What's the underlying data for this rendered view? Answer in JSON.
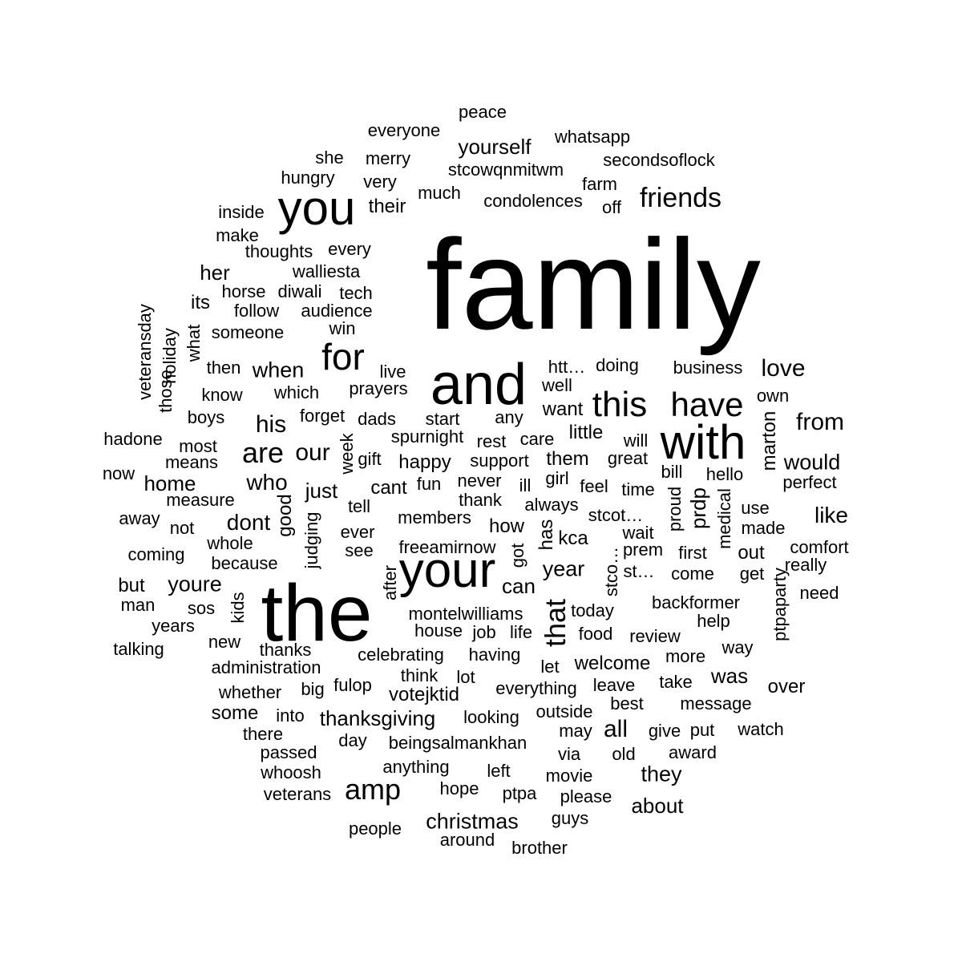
{
  "words": [
    {
      "text": "family",
      "weight": 100
    },
    {
      "text": "the",
      "weight": 55
    },
    {
      "text": "and",
      "weight": 48
    },
    {
      "text": "your",
      "weight": 42
    },
    {
      "text": "with",
      "weight": 40
    },
    {
      "text": "you",
      "weight": 38
    },
    {
      "text": "for",
      "weight": 32
    },
    {
      "text": "this",
      "weight": 30
    },
    {
      "text": "have",
      "weight": 30
    },
    {
      "text": "are",
      "weight": 25
    },
    {
      "text": "amp",
      "weight": 25
    },
    {
      "text": "that",
      "weight": 24
    },
    {
      "text": "friends",
      "weight": 22
    },
    {
      "text": "his",
      "weight": 20
    },
    {
      "text": "our",
      "weight": 20
    },
    {
      "text": "from",
      "weight": 20
    },
    {
      "text": "love",
      "weight": 19
    },
    {
      "text": "all",
      "weight": 19
    },
    {
      "text": "who",
      "weight": 18
    },
    {
      "text": "like",
      "weight": 18
    },
    {
      "text": "dont",
      "weight": 18
    },
    {
      "text": "christmas",
      "weight": 17
    },
    {
      "text": "they",
      "weight": 17
    },
    {
      "text": "would",
      "weight": 17
    },
    {
      "text": "when",
      "weight": 17
    },
    {
      "text": "youre",
      "weight": 17
    },
    {
      "text": "year",
      "weight": 17
    },
    {
      "text": "thanksgiving",
      "weight": 16
    },
    {
      "text": "about",
      "weight": 16
    },
    {
      "text": "home",
      "weight": 16
    },
    {
      "text": "her",
      "weight": 16
    },
    {
      "text": "just",
      "weight": 16
    },
    {
      "text": "yourself",
      "weight": 16
    },
    {
      "text": "can",
      "weight": 16
    },
    {
      "text": "was",
      "weight": 16
    },
    {
      "text": "prdp",
      "weight": 16
    },
    {
      "text": "good",
      "weight": 15
    },
    {
      "text": "has",
      "weight": 15
    },
    {
      "text": "kca",
      "weight": 15
    },
    {
      "text": "votejktid",
      "weight": 15
    },
    {
      "text": "out",
      "weight": 15
    },
    {
      "text": "how",
      "weight": 15
    },
    {
      "text": "welcome",
      "weight": 15
    },
    {
      "text": "over",
      "weight": 15
    },
    {
      "text": "some",
      "weight": 15
    },
    {
      "text": "but",
      "weight": 15
    },
    {
      "text": "cant",
      "weight": 15
    },
    {
      "text": "happy",
      "weight": 15
    },
    {
      "text": "them",
      "weight": 14
    },
    {
      "text": "want",
      "weight": 14
    },
    {
      "text": "its",
      "weight": 14
    },
    {
      "text": "their",
      "weight": 14
    },
    {
      "text": "marton",
      "weight": 14
    },
    {
      "text": "little",
      "weight": 14
    },
    {
      "text": "peace",
      "weight": 13
    },
    {
      "text": "everyone",
      "weight": 13
    },
    {
      "text": "whatsapp",
      "weight": 13
    },
    {
      "text": "she",
      "weight": 13
    },
    {
      "text": "merry",
      "weight": 13
    },
    {
      "text": "secondsoflock",
      "weight": 13
    },
    {
      "text": "hungry",
      "weight": 13
    },
    {
      "text": "very",
      "weight": 13
    },
    {
      "text": "stcowqnmitwm",
      "weight": 13
    },
    {
      "text": "farm",
      "weight": 13
    },
    {
      "text": "much",
      "weight": 13
    },
    {
      "text": "condolences",
      "weight": 13
    },
    {
      "text": "off",
      "weight": 13
    },
    {
      "text": "inside",
      "weight": 13
    },
    {
      "text": "make",
      "weight": 13
    },
    {
      "text": "thoughts",
      "weight": 13
    },
    {
      "text": "every",
      "weight": 13
    },
    {
      "text": "walliesta",
      "weight": 13
    },
    {
      "text": "horse",
      "weight": 13
    },
    {
      "text": "diwali",
      "weight": 13
    },
    {
      "text": "tech",
      "weight": 13
    },
    {
      "text": "follow",
      "weight": 13
    },
    {
      "text": "audience",
      "weight": 13
    },
    {
      "text": "veteransday",
      "weight": 13
    },
    {
      "text": "holiday",
      "weight": 13
    },
    {
      "text": "what",
      "weight": 13
    },
    {
      "text": "someone",
      "weight": 13
    },
    {
      "text": "win",
      "weight": 13
    },
    {
      "text": "those",
      "weight": 13
    },
    {
      "text": "then",
      "weight": 13
    },
    {
      "text": "know",
      "weight": 13
    },
    {
      "text": "which",
      "weight": 13
    },
    {
      "text": "live",
      "weight": 13
    },
    {
      "text": "prayers",
      "weight": 13
    },
    {
      "text": "htt…",
      "weight": 13
    },
    {
      "text": "doing",
      "weight": 13
    },
    {
      "text": "well",
      "weight": 13
    },
    {
      "text": "business",
      "weight": 13
    },
    {
      "text": "own",
      "weight": 13
    },
    {
      "text": "boys",
      "weight": 13
    },
    {
      "text": "forget",
      "weight": 13
    },
    {
      "text": "dads",
      "weight": 13
    },
    {
      "text": "start",
      "weight": 13
    },
    {
      "text": "any",
      "weight": 13
    },
    {
      "text": "hadone",
      "weight": 13
    },
    {
      "text": "most",
      "weight": 13
    },
    {
      "text": "spurnight",
      "weight": 13
    },
    {
      "text": "rest",
      "weight": 13
    },
    {
      "text": "care",
      "weight": 13
    },
    {
      "text": "will",
      "weight": 13
    },
    {
      "text": "means",
      "weight": 13
    },
    {
      "text": "week",
      "weight": 13
    },
    {
      "text": "gift",
      "weight": 13
    },
    {
      "text": "support",
      "weight": 13
    },
    {
      "text": "great",
      "weight": 13
    },
    {
      "text": "now",
      "weight": 13
    },
    {
      "text": "fun",
      "weight": 13
    },
    {
      "text": "never",
      "weight": 13
    },
    {
      "text": "girl",
      "weight": 13
    },
    {
      "text": "bill",
      "weight": 13
    },
    {
      "text": "hello",
      "weight": 13
    },
    {
      "text": "perfect",
      "weight": 13
    },
    {
      "text": "measure",
      "weight": 13
    },
    {
      "text": "tell",
      "weight": 13
    },
    {
      "text": "thank",
      "weight": 13
    },
    {
      "text": "ill",
      "weight": 13
    },
    {
      "text": "feel",
      "weight": 13
    },
    {
      "text": "time",
      "weight": 13
    },
    {
      "text": "always",
      "weight": 13
    },
    {
      "text": "proud",
      "weight": 13
    },
    {
      "text": "medical",
      "weight": 13
    },
    {
      "text": "use",
      "weight": 13
    },
    {
      "text": "away",
      "weight": 13
    },
    {
      "text": "members",
      "weight": 13
    },
    {
      "text": "stcot…",
      "weight": 13
    },
    {
      "text": "not",
      "weight": 13
    },
    {
      "text": "judging",
      "weight": 13
    },
    {
      "text": "ever",
      "weight": 13
    },
    {
      "text": "wait",
      "weight": 13
    },
    {
      "text": "made",
      "weight": 13
    },
    {
      "text": "whole",
      "weight": 13
    },
    {
      "text": "see",
      "weight": 13
    },
    {
      "text": "freeamirnow",
      "weight": 13
    },
    {
      "text": "got",
      "weight": 13
    },
    {
      "text": "prem",
      "weight": 13
    },
    {
      "text": "first",
      "weight": 13
    },
    {
      "text": "comfort",
      "weight": 13
    },
    {
      "text": "coming",
      "weight": 13
    },
    {
      "text": "because",
      "weight": 13
    },
    {
      "text": "stco…",
      "weight": 13
    },
    {
      "text": "st…",
      "weight": 13
    },
    {
      "text": "really",
      "weight": 13
    },
    {
      "text": "after",
      "weight": 13
    },
    {
      "text": "come",
      "weight": 13
    },
    {
      "text": "get",
      "weight": 13
    },
    {
      "text": "man",
      "weight": 13
    },
    {
      "text": "need",
      "weight": 13
    },
    {
      "text": "kids",
      "weight": 13
    },
    {
      "text": "sos",
      "weight": 13
    },
    {
      "text": "montelwilliams",
      "weight": 13
    },
    {
      "text": "today",
      "weight": 13
    },
    {
      "text": "backformer",
      "weight": 13
    },
    {
      "text": "years",
      "weight": 13
    },
    {
      "text": "ptpaparty",
      "weight": 13
    },
    {
      "text": "house",
      "weight": 13
    },
    {
      "text": "job",
      "weight": 13
    },
    {
      "text": "life",
      "weight": 13
    },
    {
      "text": "help",
      "weight": 13
    },
    {
      "text": "food",
      "weight": 13
    },
    {
      "text": "review",
      "weight": 13
    },
    {
      "text": "talking",
      "weight": 13
    },
    {
      "text": "new",
      "weight": 13
    },
    {
      "text": "thanks",
      "weight": 13
    },
    {
      "text": "way",
      "weight": 13
    },
    {
      "text": "celebrating",
      "weight": 13
    },
    {
      "text": "having",
      "weight": 13
    },
    {
      "text": "more",
      "weight": 13
    },
    {
      "text": "administration",
      "weight": 13
    },
    {
      "text": "let",
      "weight": 13
    },
    {
      "text": "think",
      "weight": 13
    },
    {
      "text": "lot",
      "weight": 13
    },
    {
      "text": "take",
      "weight": 13
    },
    {
      "text": "whether",
      "weight": 13
    },
    {
      "text": "big",
      "weight": 13
    },
    {
      "text": "fulop",
      "weight": 13
    },
    {
      "text": "everything",
      "weight": 13
    },
    {
      "text": "leave",
      "weight": 13
    },
    {
      "text": "best",
      "weight": 13
    },
    {
      "text": "message",
      "weight": 13
    },
    {
      "text": "into",
      "weight": 13
    },
    {
      "text": "looking",
      "weight": 13
    },
    {
      "text": "outside",
      "weight": 13
    },
    {
      "text": "there",
      "weight": 13
    },
    {
      "text": "may",
      "weight": 13
    },
    {
      "text": "give",
      "weight": 13
    },
    {
      "text": "put",
      "weight": 13
    },
    {
      "text": "watch",
      "weight": 13
    },
    {
      "text": "passed",
      "weight": 13
    },
    {
      "text": "day",
      "weight": 13
    },
    {
      "text": "beingsalmankhan",
      "weight": 13
    },
    {
      "text": "via",
      "weight": 13
    },
    {
      "text": "old",
      "weight": 13
    },
    {
      "text": "award",
      "weight": 13
    },
    {
      "text": "anything",
      "weight": 13
    },
    {
      "text": "whoosh",
      "weight": 13
    },
    {
      "text": "left",
      "weight": 13
    },
    {
      "text": "movie",
      "weight": 13
    },
    {
      "text": "veterans",
      "weight": 13
    },
    {
      "text": "hope",
      "weight": 13
    },
    {
      "text": "ptpa",
      "weight": 13
    },
    {
      "text": "please",
      "weight": 13
    },
    {
      "text": "guys",
      "weight": 13
    },
    {
      "text": "people",
      "weight": 13
    },
    {
      "text": "around",
      "weight": 13
    },
    {
      "text": "brother",
      "weight": 13
    }
  ]
}
